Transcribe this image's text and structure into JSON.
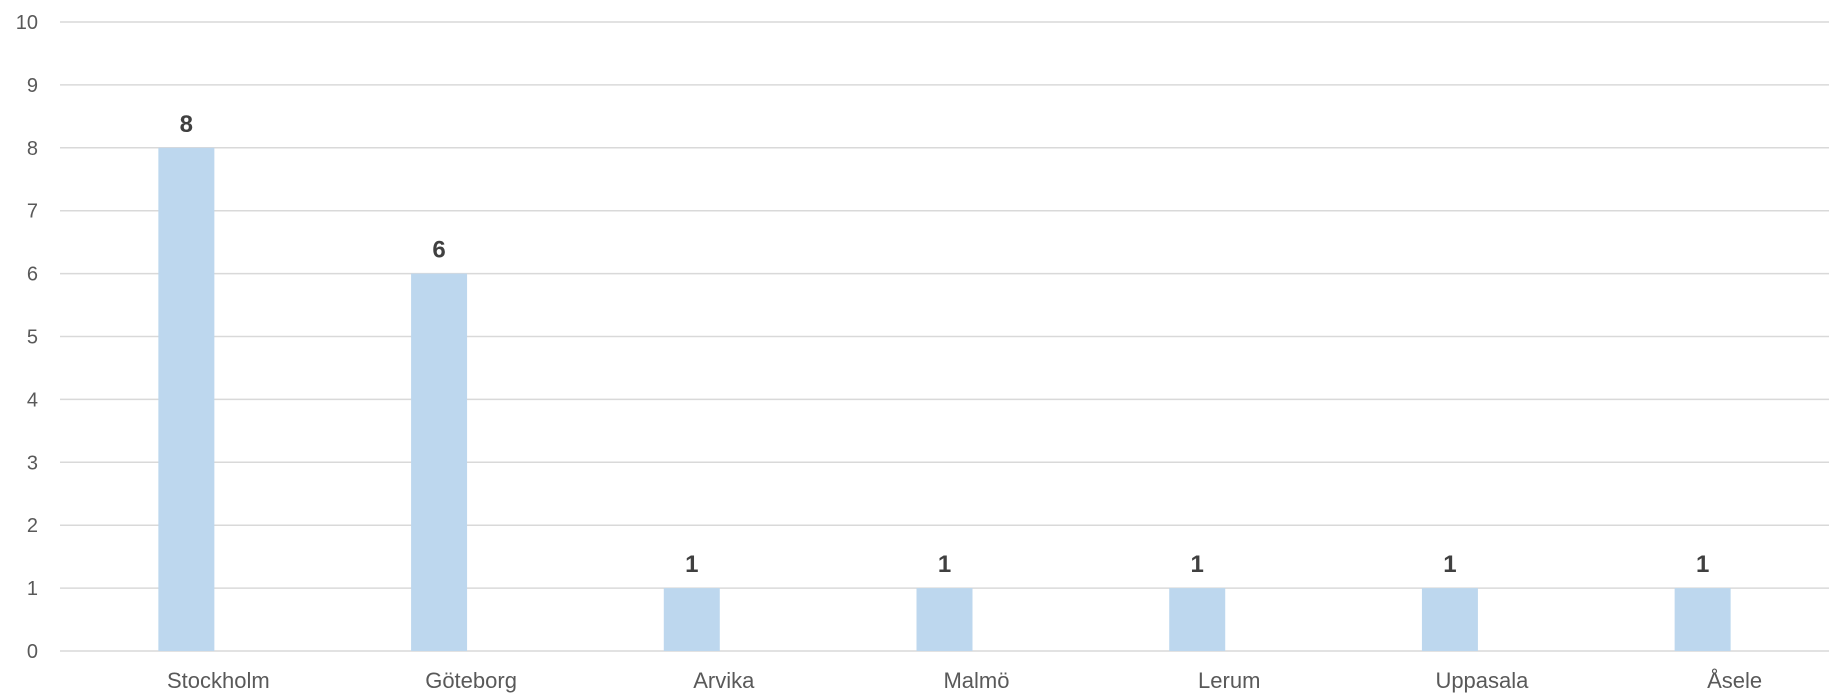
{
  "chart_data": {
    "type": "bar",
    "categories": [
      "Stockholm",
      "Göteborg",
      "Arvika",
      "Malmö",
      "Lerum",
      "Uppasala",
      "Åsele"
    ],
    "values": [
      8,
      6,
      1,
      1,
      1,
      1,
      1
    ],
    "ylim": [
      0,
      10
    ],
    "yticks": [
      0,
      1,
      2,
      3,
      4,
      5,
      6,
      7,
      8,
      9,
      10
    ],
    "grid": true,
    "data_labels": true,
    "colors": {
      "bar": "#bdd7ee",
      "grid": "#d9d9d9",
      "tick_text": "#595959",
      "label_text": "#404040"
    }
  }
}
